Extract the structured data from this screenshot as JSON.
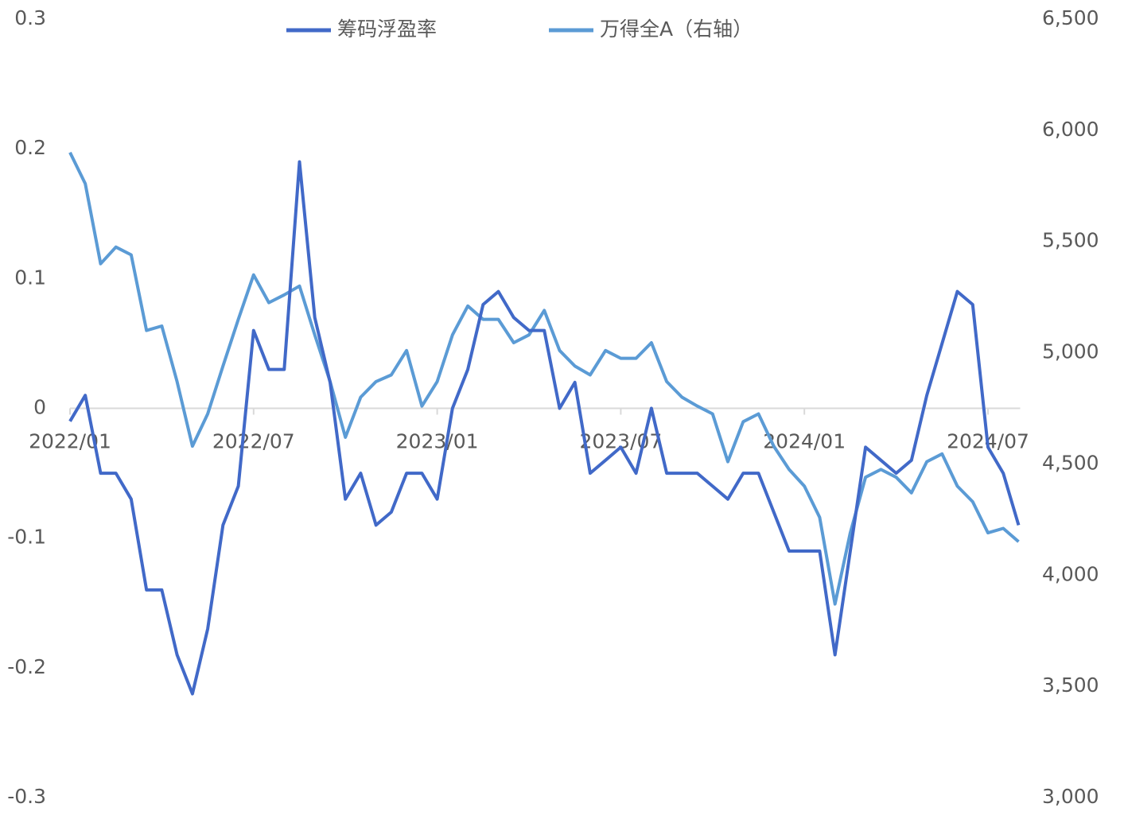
{
  "chart_data": {
    "type": "line",
    "categories": [
      "2022/01",
      null,
      null,
      null,
      null,
      null,
      null,
      null,
      null,
      null,
      null,
      null,
      "2022/07",
      null,
      null,
      null,
      null,
      null,
      null,
      null,
      null,
      null,
      null,
      null,
      "2023/01",
      null,
      null,
      null,
      null,
      null,
      null,
      null,
      null,
      null,
      null,
      null,
      "2023/07",
      null,
      null,
      null,
      null,
      null,
      null,
      null,
      null,
      null,
      null,
      null,
      "2024/01",
      null,
      null,
      null,
      null,
      null,
      null,
      null,
      null,
      null,
      null,
      null,
      "2024/07",
      null,
      null
    ],
    "series": [
      {
        "name": "筹码浮盈率",
        "color": "#4169c8",
        "axis": "y",
        "values": [
          -0.01,
          0.01,
          -0.05,
          -0.05,
          -0.07,
          -0.14,
          -0.14,
          -0.19,
          -0.22,
          -0.17,
          -0.09,
          -0.06,
          0.06,
          0.03,
          0.03,
          0.19,
          0.07,
          0.02,
          -0.07,
          -0.05,
          -0.09,
          -0.08,
          -0.05,
          -0.05,
          -0.07,
          0.0,
          0.03,
          0.08,
          0.09,
          0.07,
          0.06,
          0.06,
          0.0,
          0.02,
          -0.05,
          -0.04,
          -0.03,
          -0.05,
          0.0,
          -0.05,
          -0.05,
          -0.05,
          -0.06,
          -0.07,
          -0.05,
          -0.05,
          -0.08,
          -0.11,
          -0.11,
          -0.11,
          -0.19,
          -0.11,
          -0.03,
          -0.04,
          -0.05,
          -0.04,
          0.01,
          0.05,
          0.09,
          0.08,
          -0.03,
          -0.05,
          -0.09
        ]
      },
      {
        "name": "万得全A（右轴）",
        "color": "#5b9bd5",
        "axis": "y2",
        "values": [
          5900,
          5760,
          5400,
          5475,
          5440,
          5100,
          5120,
          4870,
          4580,
          4725,
          4940,
          5150,
          5350,
          5225,
          5260,
          5300,
          5080,
          4870,
          4620,
          4800,
          4870,
          4900,
          5010,
          4760,
          4870,
          5080,
          5210,
          5150,
          5150,
          5045,
          5080,
          5190,
          5010,
          4940,
          4900,
          5010,
          4975,
          4975,
          5045,
          4870,
          4800,
          4760,
          4725,
          4510,
          4690,
          4725,
          4580,
          4475,
          4400,
          4260,
          3870,
          4190,
          4440,
          4475,
          4440,
          4370,
          4510,
          4545,
          4400,
          4330,
          4190,
          4210,
          4150
        ]
      }
    ],
    "ylim": [
      -0.3,
      0.3
    ],
    "yticks": [
      -0.3,
      -0.2,
      -0.1,
      0,
      0.1,
      0.2,
      0.3
    ],
    "y2lim": [
      3000,
      6500
    ],
    "y2ticks": [
      {
        "value": 3000,
        "label": "3,000"
      },
      {
        "value": 3500,
        "label": "3,500"
      },
      {
        "value": 4000,
        "label": "4,000"
      },
      {
        "value": 4500,
        "label": "4,500"
      },
      {
        "value": 5000,
        "label": "5,000"
      },
      {
        "value": 5500,
        "label": "5,500"
      },
      {
        "value": 6000,
        "label": "6,000"
      },
      {
        "value": 6500,
        "label": "6,500"
      }
    ],
    "legend": "top",
    "grid": false
  }
}
